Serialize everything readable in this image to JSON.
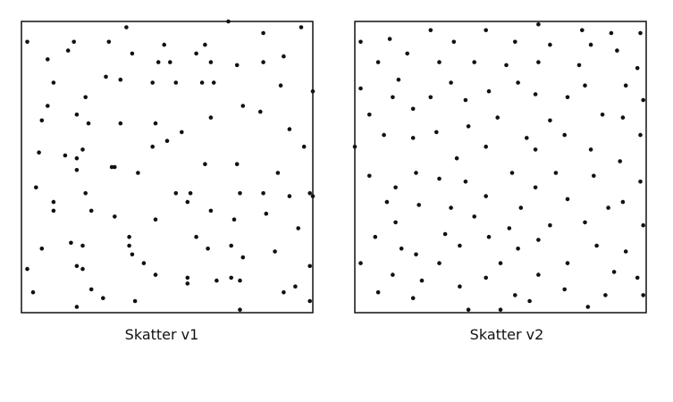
{
  "chart_data": [
    {
      "type": "scatter",
      "title": "Skatter v1",
      "xlabel": "",
      "ylabel": "",
      "xlim": [
        0,
        1
      ],
      "ylim": [
        0,
        1
      ],
      "axes_visible": false,
      "grid": false,
      "legend": "none",
      "point_color": "#111111",
      "points": [
        [
          0.71,
          1.0
        ],
        [
          0.36,
          0.98
        ],
        [
          0.96,
          0.98
        ],
        [
          0.83,
          0.96
        ],
        [
          0.02,
          0.93
        ],
        [
          0.18,
          0.93
        ],
        [
          0.3,
          0.93
        ],
        [
          0.49,
          0.92
        ],
        [
          0.63,
          0.92
        ],
        [
          0.16,
          0.9
        ],
        [
          0.38,
          0.89
        ],
        [
          0.6,
          0.89
        ],
        [
          0.9,
          0.88
        ],
        [
          0.09,
          0.87
        ],
        [
          0.47,
          0.86
        ],
        [
          0.51,
          0.86
        ],
        [
          0.65,
          0.86
        ],
        [
          0.74,
          0.85
        ],
        [
          0.83,
          0.86
        ],
        [
          0.29,
          0.81
        ],
        [
          0.34,
          0.8
        ],
        [
          0.11,
          0.79
        ],
        [
          0.62,
          0.79
        ],
        [
          0.66,
          0.79
        ],
        [
          0.45,
          0.79
        ],
        [
          0.53,
          0.79
        ],
        [
          0.89,
          0.78
        ],
        [
          1.0,
          0.76
        ],
        [
          0.22,
          0.74
        ],
        [
          0.09,
          0.71
        ],
        [
          0.76,
          0.71
        ],
        [
          0.82,
          0.69
        ],
        [
          0.19,
          0.68
        ],
        [
          0.65,
          0.67
        ],
        [
          0.07,
          0.66
        ],
        [
          0.23,
          0.65
        ],
        [
          0.34,
          0.65
        ],
        [
          0.46,
          0.65
        ],
        [
          0.55,
          0.62
        ],
        [
          0.92,
          0.63
        ],
        [
          0.5,
          0.59
        ],
        [
          0.45,
          0.57
        ],
        [
          0.21,
          0.56
        ],
        [
          0.97,
          0.57
        ],
        [
          0.06,
          0.55
        ],
        [
          0.15,
          0.54
        ],
        [
          0.19,
          0.53
        ],
        [
          0.31,
          0.5
        ],
        [
          0.32,
          0.5
        ],
        [
          0.63,
          0.51
        ],
        [
          0.74,
          0.51
        ],
        [
          0.19,
          0.49
        ],
        [
          0.4,
          0.48
        ],
        [
          0.88,
          0.48
        ],
        [
          0.05,
          0.43
        ],
        [
          0.22,
          0.41
        ],
        [
          0.53,
          0.41
        ],
        [
          0.58,
          0.41
        ],
        [
          0.75,
          0.41
        ],
        [
          0.83,
          0.41
        ],
        [
          0.99,
          0.41
        ],
        [
          1.0,
          0.4
        ],
        [
          0.11,
          0.38
        ],
        [
          0.57,
          0.38
        ],
        [
          0.92,
          0.4
        ],
        [
          0.65,
          0.35
        ],
        [
          0.11,
          0.35
        ],
        [
          0.24,
          0.35
        ],
        [
          0.32,
          0.33
        ],
        [
          0.46,
          0.32
        ],
        [
          0.73,
          0.32
        ],
        [
          0.84,
          0.34
        ],
        [
          0.37,
          0.26
        ],
        [
          0.6,
          0.26
        ],
        [
          0.95,
          0.29
        ],
        [
          0.17,
          0.24
        ],
        [
          0.21,
          0.23
        ],
        [
          0.37,
          0.23
        ],
        [
          0.72,
          0.23
        ],
        [
          0.64,
          0.22
        ],
        [
          0.07,
          0.22
        ],
        [
          0.87,
          0.21
        ],
        [
          0.38,
          0.2
        ],
        [
          0.76,
          0.19
        ],
        [
          0.19,
          0.16
        ],
        [
          0.21,
          0.15
        ],
        [
          0.42,
          0.17
        ],
        [
          0.02,
          0.15
        ],
        [
          0.46,
          0.13
        ],
        [
          0.99,
          0.16
        ],
        [
          0.67,
          0.11
        ],
        [
          0.72,
          0.12
        ],
        [
          0.75,
          0.11
        ],
        [
          0.57,
          0.1
        ],
        [
          0.24,
          0.08
        ],
        [
          0.04,
          0.07
        ],
        [
          0.28,
          0.05
        ],
        [
          0.9,
          0.07
        ],
        [
          0.94,
          0.09
        ],
        [
          0.39,
          0.04
        ],
        [
          0.99,
          0.04
        ],
        [
          0.19,
          0.02
        ],
        [
          0.75,
          0.01
        ],
        [
          0.57,
          0.12
        ]
      ]
    },
    {
      "type": "scatter",
      "title": "Skatter v2",
      "xlabel": "",
      "ylabel": "",
      "xlim": [
        0,
        1
      ],
      "ylim": [
        0,
        1
      ],
      "axes_visible": false,
      "grid": false,
      "legend": "none",
      "point_color": "#111111",
      "points": [
        [
          0.63,
          0.99
        ],
        [
          0.26,
          0.97
        ],
        [
          0.45,
          0.97
        ],
        [
          0.78,
          0.97
        ],
        [
          0.88,
          0.96
        ],
        [
          0.98,
          0.96
        ],
        [
          0.12,
          0.94
        ],
        [
          0.02,
          0.93
        ],
        [
          0.34,
          0.93
        ],
        [
          0.55,
          0.93
        ],
        [
          0.67,
          0.92
        ],
        [
          0.81,
          0.92
        ],
        [
          0.9,
          0.9
        ],
        [
          0.18,
          0.89
        ],
        [
          0.29,
          0.86
        ],
        [
          0.08,
          0.86
        ],
        [
          0.41,
          0.86
        ],
        [
          0.52,
          0.85
        ],
        [
          0.63,
          0.86
        ],
        [
          0.77,
          0.85
        ],
        [
          0.97,
          0.84
        ],
        [
          0.15,
          0.8
        ],
        [
          0.33,
          0.79
        ],
        [
          0.56,
          0.79
        ],
        [
          0.79,
          0.78
        ],
        [
          0.02,
          0.77
        ],
        [
          0.93,
          0.78
        ],
        [
          0.46,
          0.76
        ],
        [
          0.62,
          0.75
        ],
        [
          0.26,
          0.74
        ],
        [
          0.13,
          0.74
        ],
        [
          0.38,
          0.73
        ],
        [
          0.73,
          0.74
        ],
        [
          0.99,
          0.73
        ],
        [
          0.05,
          0.68
        ],
        [
          0.2,
          0.7
        ],
        [
          0.49,
          0.67
        ],
        [
          0.85,
          0.68
        ],
        [
          0.92,
          0.67
        ],
        [
          0.67,
          0.66
        ],
        [
          0.39,
          0.64
        ],
        [
          0.28,
          0.62
        ],
        [
          0.1,
          0.61
        ],
        [
          0.2,
          0.6
        ],
        [
          0.59,
          0.6
        ],
        [
          0.72,
          0.61
        ],
        [
          0.98,
          0.61
        ],
        [
          0.0,
          0.57
        ],
        [
          0.45,
          0.57
        ],
        [
          0.62,
          0.56
        ],
        [
          0.35,
          0.53
        ],
        [
          0.81,
          0.56
        ],
        [
          0.91,
          0.52
        ],
        [
          0.05,
          0.47
        ],
        [
          0.21,
          0.48
        ],
        [
          0.54,
          0.48
        ],
        [
          0.69,
          0.48
        ],
        [
          0.29,
          0.46
        ],
        [
          0.82,
          0.47
        ],
        [
          0.38,
          0.45
        ],
        [
          0.98,
          0.45
        ],
        [
          0.14,
          0.43
        ],
        [
          0.62,
          0.43
        ],
        [
          0.45,
          0.4
        ],
        [
          0.11,
          0.38
        ],
        [
          0.73,
          0.39
        ],
        [
          0.92,
          0.38
        ],
        [
          0.22,
          0.37
        ],
        [
          0.33,
          0.36
        ],
        [
          0.87,
          0.36
        ],
        [
          0.57,
          0.36
        ],
        [
          0.41,
          0.33
        ],
        [
          0.79,
          0.31
        ],
        [
          0.14,
          0.31
        ],
        [
          0.67,
          0.3
        ],
        [
          0.53,
          0.29
        ],
        [
          0.99,
          0.3
        ],
        [
          0.31,
          0.27
        ],
        [
          0.46,
          0.26
        ],
        [
          0.63,
          0.25
        ],
        [
          0.07,
          0.26
        ],
        [
          0.16,
          0.22
        ],
        [
          0.83,
          0.23
        ],
        [
          0.21,
          0.2
        ],
        [
          0.36,
          0.23
        ],
        [
          0.56,
          0.22
        ],
        [
          0.93,
          0.21
        ],
        [
          0.29,
          0.17
        ],
        [
          0.5,
          0.17
        ],
        [
          0.73,
          0.17
        ],
        [
          0.02,
          0.17
        ],
        [
          0.89,
          0.14
        ],
        [
          0.13,
          0.13
        ],
        [
          0.45,
          0.12
        ],
        [
          0.63,
          0.13
        ],
        [
          0.97,
          0.12
        ],
        [
          0.23,
          0.11
        ],
        [
          0.36,
          0.09
        ],
        [
          0.86,
          0.06
        ],
        [
          0.08,
          0.07
        ],
        [
          0.2,
          0.05
        ],
        [
          0.72,
          0.08
        ],
        [
          0.99,
          0.06
        ],
        [
          0.6,
          0.04
        ],
        [
          0.39,
          0.01
        ],
        [
          0.5,
          0.01
        ],
        [
          0.8,
          0.02
        ],
        [
          0.55,
          0.06
        ]
      ]
    }
  ]
}
